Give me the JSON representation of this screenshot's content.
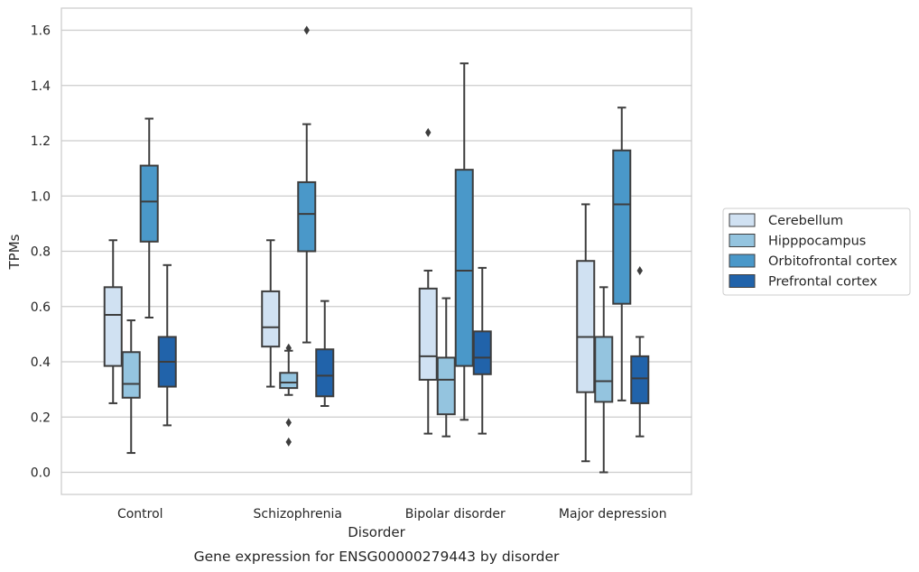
{
  "chart_data": {
    "type": "box",
    "title": "",
    "caption": "Gene expression for ENSG00000279443 by disorder",
    "xlabel": "Disorder",
    "ylabel": "TPMs",
    "ylim": [
      -0.08,
      1.68
    ],
    "yticks": [
      0.0,
      0.2,
      0.4,
      0.6,
      0.8,
      1.0,
      1.2,
      1.4,
      1.6
    ],
    "ytick_labels": [
      "0.0",
      "0.2",
      "0.4",
      "0.6",
      "0.8",
      "1.0",
      "1.2",
      "1.4",
      "1.6"
    ],
    "grid": "horizontal",
    "legend_position": "right",
    "categories": [
      "Control",
      "Schizophrenia",
      "Bipolar disorder",
      "Major depression"
    ],
    "series": [
      {
        "name": "Cerebellum",
        "color": "#d0e1f2",
        "boxes": [
          {
            "whislo": 0.25,
            "q1": 0.385,
            "med": 0.57,
            "q3": 0.67,
            "whishi": 0.84,
            "fliers": []
          },
          {
            "whislo": 0.31,
            "q1": 0.455,
            "med": 0.525,
            "q3": 0.655,
            "whishi": 0.84,
            "fliers": []
          },
          {
            "whislo": 0.14,
            "q1": 0.335,
            "med": 0.42,
            "q3": 0.665,
            "whishi": 0.73,
            "fliers": [
              1.23
            ]
          },
          {
            "whislo": 0.04,
            "q1": 0.29,
            "med": 0.49,
            "q3": 0.765,
            "whishi": 0.97,
            "fliers": []
          }
        ]
      },
      {
        "name": "Hipppocampus",
        "color": "#94c4df",
        "boxes": [
          {
            "whislo": 0.07,
            "q1": 0.27,
            "med": 0.32,
            "q3": 0.435,
            "whishi": 0.55,
            "fliers": []
          },
          {
            "whislo": 0.28,
            "q1": 0.305,
            "med": 0.325,
            "q3": 0.36,
            "whishi": 0.44,
            "fliers": [
              0.45,
              0.18,
              0.11
            ]
          },
          {
            "whislo": 0.13,
            "q1": 0.21,
            "med": 0.335,
            "q3": 0.415,
            "whishi": 0.63,
            "fliers": []
          },
          {
            "whislo": 0.0,
            "q1": 0.255,
            "med": 0.33,
            "q3": 0.49,
            "whishi": 0.67,
            "fliers": []
          }
        ]
      },
      {
        "name": "Orbitofrontal cortex",
        "color": "#4a98c9",
        "boxes": [
          {
            "whislo": 0.56,
            "q1": 0.835,
            "med": 0.98,
            "q3": 1.11,
            "whishi": 1.28,
            "fliers": []
          },
          {
            "whislo": 0.47,
            "q1": 0.8,
            "med": 0.935,
            "q3": 1.05,
            "whishi": 1.26,
            "fliers": [
              1.6
            ]
          },
          {
            "whislo": 0.19,
            "q1": 0.385,
            "med": 0.73,
            "q3": 1.095,
            "whishi": 1.48,
            "fliers": []
          },
          {
            "whislo": 0.26,
            "q1": 0.61,
            "med": 0.97,
            "q3": 1.165,
            "whishi": 1.32,
            "fliers": []
          }
        ]
      },
      {
        "name": "Prefrontal cortex",
        "color": "#2163aa",
        "boxes": [
          {
            "whislo": 0.17,
            "q1": 0.31,
            "med": 0.4,
            "q3": 0.49,
            "whishi": 0.75,
            "fliers": []
          },
          {
            "whislo": 0.24,
            "q1": 0.275,
            "med": 0.35,
            "q3": 0.445,
            "whishi": 0.62,
            "fliers": []
          },
          {
            "whislo": 0.14,
            "q1": 0.355,
            "med": 0.415,
            "q3": 0.51,
            "whishi": 0.74,
            "fliers": []
          },
          {
            "whislo": 0.13,
            "q1": 0.25,
            "med": 0.34,
            "q3": 0.42,
            "whishi": 0.49,
            "fliers": [
              0.73
            ]
          }
        ]
      }
    ]
  }
}
